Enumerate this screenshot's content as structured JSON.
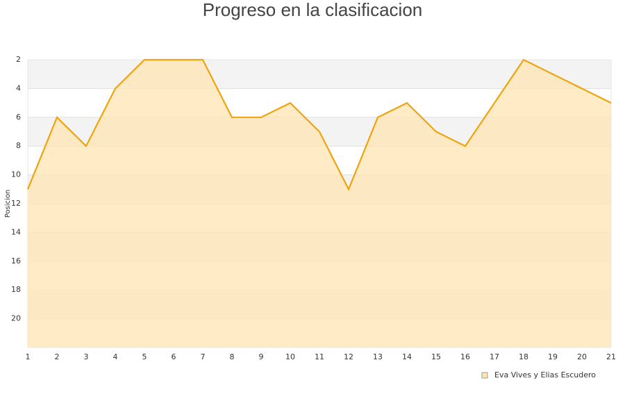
{
  "chart_data": {
    "type": "area",
    "title": "Progreso en la clasificacion",
    "y_label": "Posicion",
    "x": [
      1,
      2,
      3,
      4,
      5,
      6,
      7,
      8,
      9,
      10,
      11,
      12,
      13,
      14,
      15,
      16,
      17,
      18,
      19,
      20,
      21
    ],
    "series": [
      {
        "name": "Eva Vives y Elias Escudero",
        "color": "#f0a30a",
        "fill": "#ffe6b4",
        "values": [
          11,
          6,
          8,
          4,
          2,
          2,
          2,
          6,
          6,
          5,
          7,
          11,
          6,
          5,
          7,
          8,
          5,
          2,
          3,
          4,
          5
        ]
      }
    ],
    "xlim": [
      1,
      21
    ],
    "xticks": [
      1,
      2,
      3,
      4,
      5,
      6,
      7,
      8,
      9,
      10,
      11,
      12,
      13,
      14,
      15,
      16,
      17,
      18,
      19,
      20,
      21
    ],
    "ylim": [
      2,
      22
    ],
    "yticks": [
      2,
      4,
      6,
      8,
      10,
      12,
      14,
      16,
      18,
      20
    ],
    "y_inverted": true,
    "grid": true,
    "legend": "bottom-right"
  }
}
